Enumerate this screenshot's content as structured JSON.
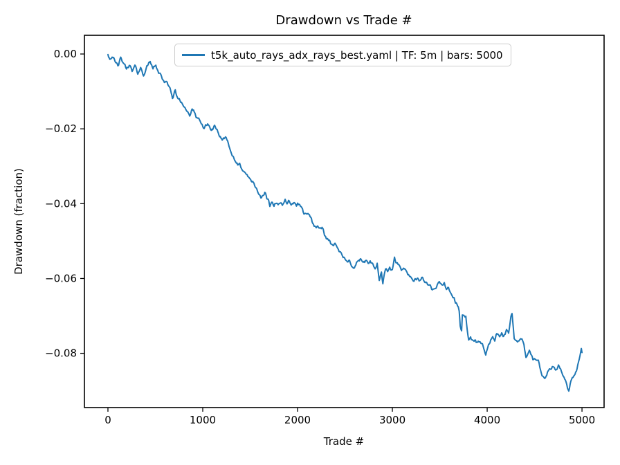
{
  "chart_data": {
    "type": "line",
    "title": "Drawdown vs Trade #",
    "xlabel": "Trade #",
    "ylabel": "Drawdown (fraction)",
    "xlim": [
      -248,
      5233
    ],
    "ylim": [
      -0.0945,
      0.005
    ],
    "grid": false,
    "legend_position": "upper center inside plot",
    "line_color": "#1f77b4",
    "axis_color": "#000000",
    "legend_border_color": "#cccccc",
    "xticks": [
      0,
      1000,
      2000,
      3000,
      4000,
      5000
    ],
    "xtick_labels": [
      "0",
      "1000",
      "2000",
      "3000",
      "4000",
      "5000"
    ],
    "yticks": [
      0,
      -0.02,
      -0.04,
      -0.06,
      -0.08
    ],
    "ytick_labels": [
      "0.00",
      "−0.02",
      "−0.04",
      "−0.06",
      "−0.08"
    ],
    "series": [
      {
        "name": "t5k_auto_rays_adx_rays_best.yaml | TF: 5m | bars: 5000",
        "points": [
          [
            0,
            0.0
          ],
          [
            20,
            -0.0013
          ],
          [
            45,
            -0.0006
          ],
          [
            75,
            -0.0022
          ],
          [
            105,
            -0.003
          ],
          [
            135,
            -0.0013
          ],
          [
            165,
            -0.0024
          ],
          [
            195,
            -0.004
          ],
          [
            225,
            -0.0028
          ],
          [
            255,
            -0.0047
          ],
          [
            285,
            -0.0032
          ],
          [
            315,
            -0.005
          ],
          [
            345,
            -0.0038
          ],
          [
            375,
            -0.0056
          ],
          [
            410,
            -0.0036
          ],
          [
            445,
            -0.0018
          ],
          [
            475,
            -0.004
          ],
          [
            505,
            -0.003
          ],
          [
            535,
            -0.0048
          ],
          [
            565,
            -0.0058
          ],
          [
            595,
            -0.008
          ],
          [
            625,
            -0.0073
          ],
          [
            655,
            -0.0094
          ],
          [
            680,
            -0.0116
          ],
          [
            710,
            -0.01
          ],
          [
            745,
            -0.0122
          ],
          [
            775,
            -0.0128
          ],
          [
            805,
            -0.014
          ],
          [
            835,
            -0.0153
          ],
          [
            862,
            -0.0165
          ],
          [
            888,
            -0.0148
          ],
          [
            918,
            -0.0161
          ],
          [
            950,
            -0.0174
          ],
          [
            985,
            -0.0186
          ],
          [
            1015,
            -0.0198
          ],
          [
            1052,
            -0.0186
          ],
          [
            1090,
            -0.0204
          ],
          [
            1125,
            -0.0194
          ],
          [
            1165,
            -0.0214
          ],
          [
            1205,
            -0.0229
          ],
          [
            1247,
            -0.0221
          ],
          [
            1285,
            -0.0248
          ],
          [
            1310,
            -0.0272
          ],
          [
            1330,
            -0.0281
          ],
          [
            1350,
            -0.029
          ],
          [
            1368,
            -0.0299
          ],
          [
            1390,
            -0.0294
          ],
          [
            1415,
            -0.0306
          ],
          [
            1440,
            -0.0318
          ],
          [
            1468,
            -0.0323
          ],
          [
            1490,
            -0.0332
          ],
          [
            1512,
            -0.034
          ],
          [
            1540,
            -0.0349
          ],
          [
            1562,
            -0.0358
          ],
          [
            1585,
            -0.0369
          ],
          [
            1620,
            -0.0386
          ],
          [
            1655,
            -0.037
          ],
          [
            1690,
            -0.0392
          ],
          [
            1708,
            -0.0404
          ],
          [
            1730,
            -0.04
          ],
          [
            1752,
            -0.0406
          ],
          [
            1770,
            -0.0401
          ],
          [
            1795,
            -0.0404
          ],
          [
            1818,
            -0.0397
          ],
          [
            1840,
            -0.0401
          ],
          [
            1869,
            -0.0391
          ],
          [
            1890,
            -0.0397
          ],
          [
            1912,
            -0.0395
          ],
          [
            1940,
            -0.0401
          ],
          [
            1965,
            -0.0397
          ],
          [
            1988,
            -0.0404
          ],
          [
            2015,
            -0.0401
          ],
          [
            2038,
            -0.0406
          ],
          [
            2060,
            -0.0424
          ],
          [
            2088,
            -0.0428
          ],
          [
            2110,
            -0.0425
          ],
          [
            2132,
            -0.0432
          ],
          [
            2160,
            -0.0452
          ],
          [
            2182,
            -0.046
          ],
          [
            2205,
            -0.0463
          ],
          [
            2235,
            -0.0466
          ],
          [
            2258,
            -0.0461
          ],
          [
            2290,
            -0.0488
          ],
          [
            2315,
            -0.0498
          ],
          [
            2342,
            -0.0502
          ],
          [
            2365,
            -0.0511
          ],
          [
            2388,
            -0.0506
          ],
          [
            2423,
            -0.052
          ],
          [
            2460,
            -0.053
          ],
          [
            2495,
            -0.0545
          ],
          [
            2525,
            -0.0557
          ],
          [
            2548,
            -0.0552
          ],
          [
            2570,
            -0.0566
          ],
          [
            2600,
            -0.0573
          ],
          [
            2622,
            -0.0561
          ],
          [
            2645,
            -0.0552
          ],
          [
            2672,
            -0.0549
          ],
          [
            2695,
            -0.0558
          ],
          [
            2715,
            -0.0552
          ],
          [
            2745,
            -0.0561
          ],
          [
            2766,
            -0.0554
          ],
          [
            2790,
            -0.0563
          ],
          [
            2818,
            -0.0573
          ],
          [
            2840,
            -0.0558
          ],
          [
            2862,
            -0.0607
          ],
          [
            2885,
            -0.0582
          ],
          [
            2900,
            -0.0612
          ],
          [
            2928,
            -0.0573
          ],
          [
            2950,
            -0.0582
          ],
          [
            2972,
            -0.0571
          ],
          [
            3000,
            -0.058
          ],
          [
            3022,
            -0.0543
          ],
          [
            3045,
            -0.0558
          ],
          [
            3075,
            -0.0567
          ],
          [
            3095,
            -0.0576
          ],
          [
            3118,
            -0.0573
          ],
          [
            3155,
            -0.0582
          ],
          [
            3190,
            -0.0598
          ],
          [
            3228,
            -0.0604
          ],
          [
            3260,
            -0.0598
          ],
          [
            3290,
            -0.0605
          ],
          [
            3315,
            -0.06
          ],
          [
            3340,
            -0.0608
          ],
          [
            3365,
            -0.0613
          ],
          [
            3400,
            -0.0622
          ],
          [
            3438,
            -0.0632
          ],
          [
            3460,
            -0.0626
          ],
          [
            3496,
            -0.0609
          ],
          [
            3520,
            -0.0617
          ],
          [
            3548,
            -0.0613
          ],
          [
            3570,
            -0.0628
          ],
          [
            3592,
            -0.0626
          ],
          [
            3620,
            -0.0641
          ],
          [
            3645,
            -0.065
          ],
          [
            3665,
            -0.0665
          ],
          [
            3695,
            -0.0676
          ],
          [
            3705,
            -0.0687
          ],
          [
            3716,
            -0.0729
          ],
          [
            3730,
            -0.0739
          ],
          [
            3738,
            -0.07
          ],
          [
            3752,
            -0.0696
          ],
          [
            3766,
            -0.0702
          ],
          [
            3775,
            -0.07
          ],
          [
            3790,
            -0.0742
          ],
          [
            3805,
            -0.0765
          ],
          [
            3825,
            -0.0757
          ],
          [
            3848,
            -0.0766
          ],
          [
            3876,
            -0.0765
          ],
          [
            3898,
            -0.0774
          ],
          [
            3920,
            -0.077
          ],
          [
            3950,
            -0.0779
          ],
          [
            3972,
            -0.0792
          ],
          [
            3985,
            -0.0803
          ],
          [
            4007,
            -0.0783
          ],
          [
            4030,
            -0.077
          ],
          [
            4058,
            -0.0757
          ],
          [
            4080,
            -0.0766
          ],
          [
            4102,
            -0.0748
          ],
          [
            4131,
            -0.0757
          ],
          [
            4153,
            -0.0746
          ],
          [
            4175,
            -0.0755
          ],
          [
            4204,
            -0.0737
          ],
          [
            4226,
            -0.0746
          ],
          [
            4250,
            -0.07
          ],
          [
            4262,
            -0.0694
          ],
          [
            4285,
            -0.0761
          ],
          [
            4321,
            -0.077
          ],
          [
            4352,
            -0.0761
          ],
          [
            4388,
            -0.0774
          ],
          [
            4409,
            -0.0811
          ],
          [
            4445,
            -0.0789
          ],
          [
            4482,
            -0.0816
          ],
          [
            4540,
            -0.0822
          ],
          [
            4578,
            -0.0859
          ],
          [
            4614,
            -0.0866
          ],
          [
            4650,
            -0.0844
          ],
          [
            4687,
            -0.0838
          ],
          [
            4723,
            -0.0844
          ],
          [
            4752,
            -0.0835
          ],
          [
            4775,
            -0.0844
          ],
          [
            4796,
            -0.0857
          ],
          [
            4825,
            -0.0872
          ],
          [
            4847,
            -0.089
          ],
          [
            4861,
            -0.0897
          ],
          [
            4883,
            -0.0877
          ],
          [
            4905,
            -0.0863
          ],
          [
            4934,
            -0.0853
          ],
          [
            4956,
            -0.0835
          ],
          [
            4978,
            -0.0807
          ],
          [
            4993,
            -0.0785
          ],
          [
            5000,
            -0.0798
          ]
        ]
      }
    ]
  }
}
